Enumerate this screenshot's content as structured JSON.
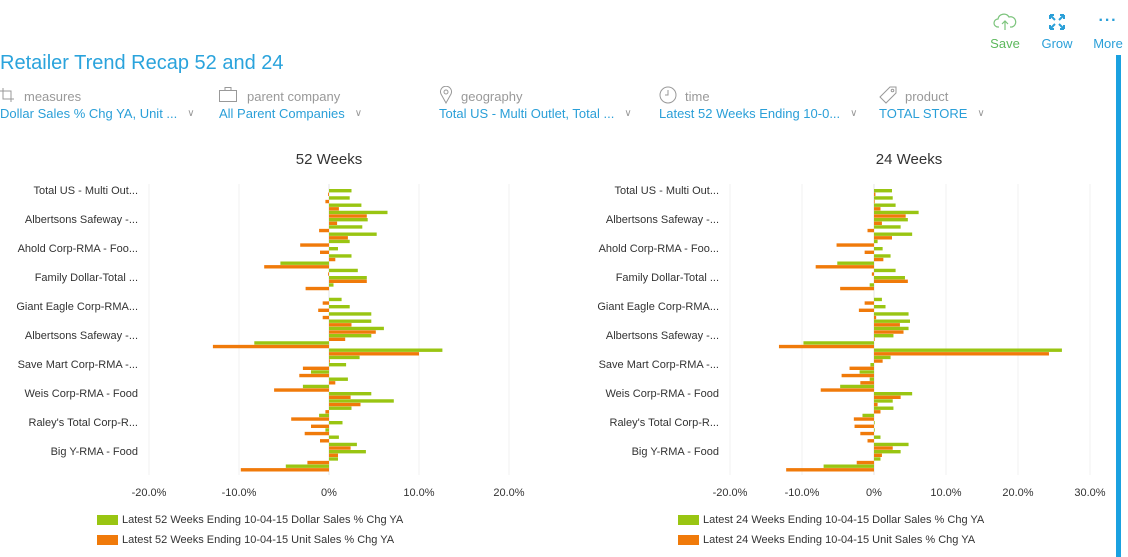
{
  "header": {
    "title": "Retailer Trend Recap 52 and 24",
    "actions": [
      {
        "label": "Save",
        "icon": "cloud-upload-icon",
        "color": "#5cb85c"
      },
      {
        "label": "Grow",
        "icon": "expand-icon",
        "color": "#2a9fd8"
      },
      {
        "label": "More",
        "icon": "more-icon",
        "color": "#2a9fd8"
      }
    ]
  },
  "filters": [
    {
      "label": "measures",
      "icon": "crop-icon",
      "value": "Dollar Sales % Chg YA, Unit ..."
    },
    {
      "label": "parent company",
      "icon": "briefcase-icon",
      "value": "All Parent Companies"
    },
    {
      "label": "geography",
      "icon": "map-pin-icon",
      "value": "Total US - Multi Outlet, Total ..."
    },
    {
      "label": "time",
      "icon": "clock-icon",
      "value": "Latest 52 Weeks Ending 10-0..."
    },
    {
      "label": "product",
      "icon": "tag-icon",
      "value": "TOTAL STORE"
    }
  ],
  "colors": {
    "dollar": "#99c512",
    "unit": "#f07a0a",
    "accent": "#2aa3dc"
  },
  "chart_data": [
    {
      "type": "bar",
      "orientation": "horizontal",
      "title": "52 Weeks",
      "categories": [
        "Total US - Multi Out...",
        "",
        "",
        "",
        "Albertsons Safeway -...",
        "",
        "",
        "",
        "Ahold Corp-RMA - Foo...",
        "",
        "",
        "",
        "Family Dollar-Total ...",
        "",
        "",
        "",
        "Giant Eagle Corp-RMA...",
        "",
        "",
        "",
        "Albertsons Safeway -...",
        "",
        "",
        "",
        "Save Mart Corp-RMA -...",
        "",
        "",
        "",
        "Weis Corp-RMA - Food",
        "",
        "",
        "",
        "Raley's Total Corp-R...",
        "",
        "",
        "",
        "Big Y-RMA - Food",
        "",
        ""
      ],
      "xlim": [
        -20,
        20
      ],
      "xticks": [
        "-20.0%",
        "-10.0%",
        "0%",
        "10.0%",
        "20.0%"
      ],
      "xtick_values": [
        -20,
        -10,
        0,
        10,
        20
      ],
      "series": [
        {
          "name": "Latest 52 Weeks Ending 10-04-15 Dollar Sales % Chg YA",
          "values": [
            2.5,
            2.3,
            3.6,
            6.5,
            4.3,
            3.7,
            5.3,
            2.3,
            1.0,
            2.5,
            -5.4,
            3.2,
            4.2,
            0.5,
            0,
            1.4,
            2.3,
            4.7,
            4.7,
            6.1,
            4.7,
            -8.3,
            12.6,
            3.4,
            1.9,
            -2.0,
            2.1,
            -2.9,
            4.7,
            7.2,
            2.5,
            -1.1,
            1.5,
            -0.4,
            1.1,
            3.1,
            4.1,
            1.0,
            -4.8
          ]
        },
        {
          "name": "Latest 52 Weeks Ending 10-04-15 Unit Sales % Chg YA",
          "values": [
            -0.1,
            -0.4,
            1.1,
            4.2,
            0.9,
            -1.1,
            2.1,
            -3.2,
            -1.0,
            0.7,
            -7.2,
            -0.1,
            4.2,
            -2.6,
            0,
            -0.7,
            -1.2,
            -0.7,
            2.5,
            5.2,
            1.8,
            -12.9,
            10.0,
            0.1,
            -2.9,
            -3.3,
            0.7,
            -6.1,
            2.4,
            3.5,
            -0.4,
            -4.2,
            -2.0,
            -2.7,
            -1.0,
            2.4,
            1.0,
            -2.4,
            -9.8
          ]
        }
      ]
    },
    {
      "type": "bar",
      "orientation": "horizontal",
      "title": "24 Weeks",
      "categories": [
        "Total US - Multi Out...",
        "",
        "",
        "",
        "Albertsons Safeway -...",
        "",
        "",
        "",
        "Ahold Corp-RMA - Foo...",
        "",
        "",
        "",
        "Family Dollar-Total ...",
        "",
        "",
        "",
        "Giant Eagle Corp-RMA...",
        "",
        "",
        "",
        "Albertsons Safeway -...",
        "",
        "",
        "",
        "Save Mart Corp-RMA -...",
        "",
        "",
        "",
        "Weis Corp-RMA - Food",
        "",
        "",
        "",
        "Raley's Total Corp-R...",
        "",
        "",
        "",
        "Big Y-RMA - Food",
        "",
        ""
      ],
      "xlim": [
        -20,
        30
      ],
      "xticks": [
        "-20.0%",
        "-10.0%",
        "0%",
        "10.0%",
        "20.0%",
        "30.0%"
      ],
      "xtick_values": [
        -20,
        -10,
        0,
        10,
        20,
        30
      ],
      "series": [
        {
          "name": "Latest 24 Weeks Ending 10-04-15 Dollar Sales % Chg YA",
          "values": [
            2.5,
            2.6,
            3.0,
            6.2,
            4.7,
            3.7,
            5.3,
            0.5,
            1.2,
            2.3,
            -5.1,
            3.0,
            4.3,
            -0.6,
            0,
            1.1,
            1.6,
            4.8,
            5.0,
            4.8,
            2.7,
            -9.8,
            26.1,
            2.3,
            -0.5,
            -2.0,
            -0.6,
            -4.7,
            5.3,
            2.6,
            2.7,
            -1.6,
            0.1,
            0.1,
            0.9,
            4.8,
            3.7,
            0.9,
            -7.0
          ]
        },
        {
          "name": "Latest 24 Weeks Ending 10-04-15 Unit Sales % Chg YA",
          "values": [
            0.2,
            0.1,
            0.9,
            4.4,
            1.1,
            -0.9,
            2.5,
            -5.2,
            -1.3,
            1.3,
            -8.1,
            -0.3,
            4.7,
            -4.7,
            0,
            -1.3,
            -2.1,
            0.3,
            3.6,
            4.1,
            0.1,
            -13.2,
            24.3,
            1.2,
            -3.4,
            -4.5,
            -1.9,
            -7.4,
            3.7,
            0.5,
            0.9,
            -2.8,
            -2.7,
            -1.9,
            -0.9,
            2.6,
            1.1,
            -2.4,
            -12.2
          ]
        }
      ]
    }
  ]
}
